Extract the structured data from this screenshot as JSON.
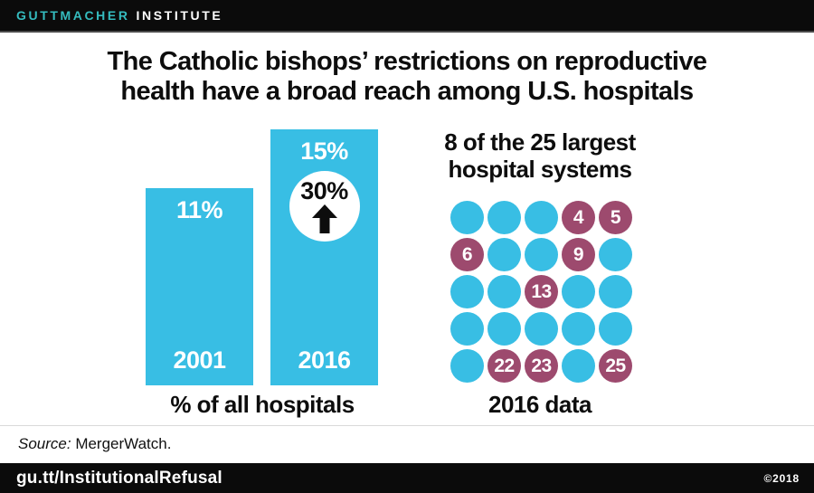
{
  "header": {
    "brand_primary": "GUTTMACHER",
    "brand_secondary": "INSTITUTE"
  },
  "title": {
    "line1": "The Catholic bishops’ restrictions on reproductive",
    "line2": "health have a broad reach among U.S. hospitals"
  },
  "colors": {
    "accent_cyan": "#38BEE4",
    "accent_maroon": "#9D4A6E",
    "brand_teal": "#35BCBF",
    "bar_black": "#0B0B0B",
    "text_black": "#0D0D0D",
    "white": "#FFFFFF"
  },
  "chart_data": [
    {
      "type": "bar",
      "title": "% of all hospitals",
      "categories": [
        "2001",
        "2016"
      ],
      "values": [
        11,
        15
      ],
      "value_labels": [
        "11%",
        "15%"
      ],
      "ylim": [
        0,
        15
      ],
      "grid": "off",
      "bar_color": "#38BEE4",
      "annotation": {
        "label": "30%",
        "icon": "up-arrow",
        "attached_to_category": "2016"
      }
    },
    {
      "type": "pictogram",
      "title": "8 of the 25 largest hospital systems",
      "title_lines": [
        "8 of the 25 largest",
        "hospital systems"
      ],
      "caption": "2016 data",
      "total": 25,
      "highlighted_count": 8,
      "highlighted_ranks": [
        4,
        5,
        6,
        9,
        13,
        22,
        23,
        25
      ],
      "plain_color": "#38BEE4",
      "highlight_color": "#9D4A6E",
      "cells": [
        {
          "label": "",
          "variant": "plain"
        },
        {
          "label": "",
          "variant": "plain"
        },
        {
          "label": "",
          "variant": "plain"
        },
        {
          "label": "4",
          "variant": "highlight"
        },
        {
          "label": "5",
          "variant": "highlight"
        },
        {
          "label": "6",
          "variant": "highlight"
        },
        {
          "label": "",
          "variant": "plain"
        },
        {
          "label": "",
          "variant": "plain"
        },
        {
          "label": "9",
          "variant": "highlight"
        },
        {
          "label": "",
          "variant": "plain"
        },
        {
          "label": "",
          "variant": "plain"
        },
        {
          "label": "",
          "variant": "plain"
        },
        {
          "label": "13",
          "variant": "highlight"
        },
        {
          "label": "",
          "variant": "plain"
        },
        {
          "label": "",
          "variant": "plain"
        },
        {
          "label": "",
          "variant": "plain"
        },
        {
          "label": "",
          "variant": "plain"
        },
        {
          "label": "",
          "variant": "plain"
        },
        {
          "label": "",
          "variant": "plain"
        },
        {
          "label": "",
          "variant": "plain"
        },
        {
          "label": "",
          "variant": "plain"
        },
        {
          "label": "22",
          "variant": "highlight"
        },
        {
          "label": "23",
          "variant": "highlight"
        },
        {
          "label": "",
          "variant": "plain"
        },
        {
          "label": "25",
          "variant": "highlight"
        }
      ]
    }
  ],
  "source": {
    "prefix": "Source:",
    "text": " MergerWatch."
  },
  "footer": {
    "link": "gu.tt/InstitutionalRefusal",
    "copyright": "©2018"
  }
}
